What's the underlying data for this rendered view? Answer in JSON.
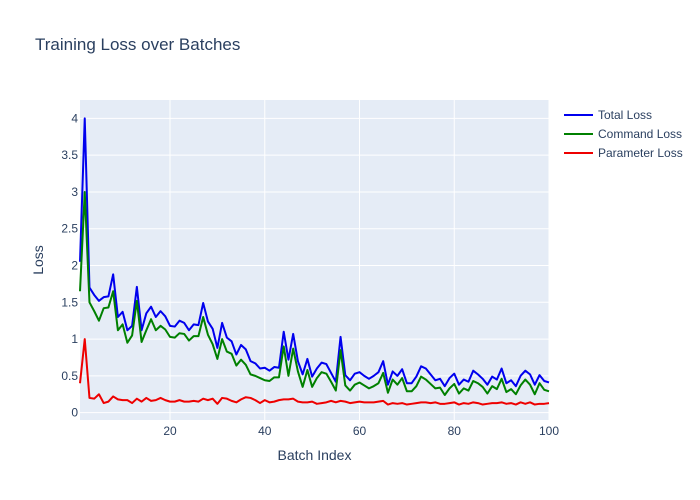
{
  "chart_data": {
    "type": "line",
    "title": "Training Loss over Batches",
    "xlabel": "Batch Index",
    "ylabel": "Loss",
    "xlim": [
      1,
      100
    ],
    "ylim": [
      -0.1,
      4.25
    ],
    "x_ticks": [
      20,
      40,
      60,
      80,
      100
    ],
    "x_tick_labels": [
      "20",
      "40",
      "60",
      "80",
      "100"
    ],
    "y_ticks": [
      0,
      0.5,
      1,
      1.5,
      2,
      2.5,
      3,
      3.5,
      4
    ],
    "y_tick_labels": [
      "0",
      "0.5",
      "1",
      "1.5",
      "2",
      "2.5",
      "3",
      "3.5",
      "4"
    ],
    "grid": true,
    "legend_position": "top-right",
    "x": [
      1,
      2,
      3,
      4,
      5,
      6,
      7,
      8,
      9,
      10,
      11,
      12,
      13,
      14,
      15,
      16,
      17,
      18,
      19,
      20,
      21,
      22,
      23,
      24,
      25,
      26,
      27,
      28,
      29,
      30,
      31,
      32,
      33,
      34,
      35,
      36,
      37,
      38,
      39,
      40,
      41,
      42,
      43,
      44,
      45,
      46,
      47,
      48,
      49,
      50,
      51,
      52,
      53,
      54,
      55,
      56,
      57,
      58,
      59,
      60,
      61,
      62,
      63,
      64,
      65,
      66,
      67,
      68,
      69,
      70,
      71,
      72,
      73,
      74,
      75,
      76,
      77,
      78,
      79,
      80,
      81,
      82,
      83,
      84,
      85,
      86,
      87,
      88,
      89,
      90,
      91,
      92,
      93,
      94,
      95,
      96,
      97,
      98,
      99,
      100
    ],
    "series": [
      {
        "name": "Total Loss",
        "color": "#0000ee",
        "values": [
          2.05,
          4.0,
          1.7,
          1.6,
          1.52,
          1.57,
          1.58,
          1.88,
          1.3,
          1.37,
          1.12,
          1.18,
          1.71,
          1.12,
          1.35,
          1.44,
          1.3,
          1.38,
          1.31,
          1.18,
          1.17,
          1.25,
          1.22,
          1.12,
          1.2,
          1.19,
          1.49,
          1.24,
          1.14,
          0.88,
          1.22,
          1.02,
          0.97,
          0.79,
          0.92,
          0.86,
          0.7,
          0.67,
          0.6,
          0.61,
          0.57,
          0.62,
          0.61,
          1.1,
          0.72,
          1.07,
          0.7,
          0.52,
          0.73,
          0.49,
          0.6,
          0.68,
          0.66,
          0.54,
          0.42,
          1.03,
          0.51,
          0.44,
          0.53,
          0.55,
          0.5,
          0.46,
          0.5,
          0.55,
          0.7,
          0.38,
          0.56,
          0.5,
          0.59,
          0.4,
          0.4,
          0.49,
          0.63,
          0.6,
          0.52,
          0.44,
          0.46,
          0.36,
          0.47,
          0.53,
          0.38,
          0.45,
          0.42,
          0.57,
          0.52,
          0.46,
          0.38,
          0.49,
          0.45,
          0.6,
          0.4,
          0.44,
          0.36,
          0.5,
          0.57,
          0.52,
          0.38,
          0.51,
          0.43,
          0.41
        ]
      },
      {
        "name": "Command Loss",
        "color": "#008000",
        "values": [
          1.65,
          3.0,
          1.5,
          1.38,
          1.25,
          1.42,
          1.43,
          1.65,
          1.12,
          1.2,
          0.95,
          1.05,
          1.52,
          0.96,
          1.12,
          1.27,
          1.12,
          1.18,
          1.13,
          1.03,
          1.02,
          1.08,
          1.07,
          0.98,
          1.04,
          1.04,
          1.3,
          1.06,
          0.93,
          0.73,
          1.0,
          0.83,
          0.8,
          0.64,
          0.72,
          0.65,
          0.52,
          0.5,
          0.47,
          0.44,
          0.43,
          0.48,
          0.48,
          0.9,
          0.5,
          0.87,
          0.56,
          0.35,
          0.58,
          0.35,
          0.47,
          0.55,
          0.53,
          0.42,
          0.3,
          0.85,
          0.37,
          0.3,
          0.38,
          0.41,
          0.37,
          0.33,
          0.36,
          0.4,
          0.54,
          0.27,
          0.45,
          0.38,
          0.47,
          0.29,
          0.29,
          0.36,
          0.49,
          0.45,
          0.39,
          0.33,
          0.34,
          0.24,
          0.33,
          0.39,
          0.26,
          0.33,
          0.3,
          0.43,
          0.4,
          0.35,
          0.26,
          0.36,
          0.32,
          0.46,
          0.28,
          0.32,
          0.25,
          0.37,
          0.45,
          0.38,
          0.25,
          0.4,
          0.31,
          0.29
        ]
      },
      {
        "name": "Parameter Loss",
        "color": "#ee0000",
        "values": [
          0.4,
          1.0,
          0.2,
          0.19,
          0.25,
          0.13,
          0.15,
          0.22,
          0.18,
          0.17,
          0.17,
          0.13,
          0.19,
          0.15,
          0.2,
          0.16,
          0.17,
          0.2,
          0.17,
          0.15,
          0.15,
          0.17,
          0.15,
          0.15,
          0.16,
          0.15,
          0.19,
          0.17,
          0.19,
          0.12,
          0.2,
          0.19,
          0.16,
          0.14,
          0.18,
          0.21,
          0.2,
          0.17,
          0.13,
          0.17,
          0.14,
          0.15,
          0.17,
          0.18,
          0.18,
          0.19,
          0.15,
          0.14,
          0.14,
          0.15,
          0.12,
          0.13,
          0.14,
          0.16,
          0.14,
          0.16,
          0.15,
          0.13,
          0.14,
          0.15,
          0.14,
          0.14,
          0.14,
          0.15,
          0.16,
          0.11,
          0.13,
          0.12,
          0.13,
          0.11,
          0.12,
          0.13,
          0.14,
          0.14,
          0.13,
          0.14,
          0.12,
          0.12,
          0.13,
          0.14,
          0.11,
          0.13,
          0.12,
          0.14,
          0.13,
          0.11,
          0.12,
          0.13,
          0.13,
          0.14,
          0.12,
          0.13,
          0.11,
          0.14,
          0.12,
          0.14,
          0.11,
          0.12,
          0.12,
          0.13
        ]
      }
    ]
  }
}
